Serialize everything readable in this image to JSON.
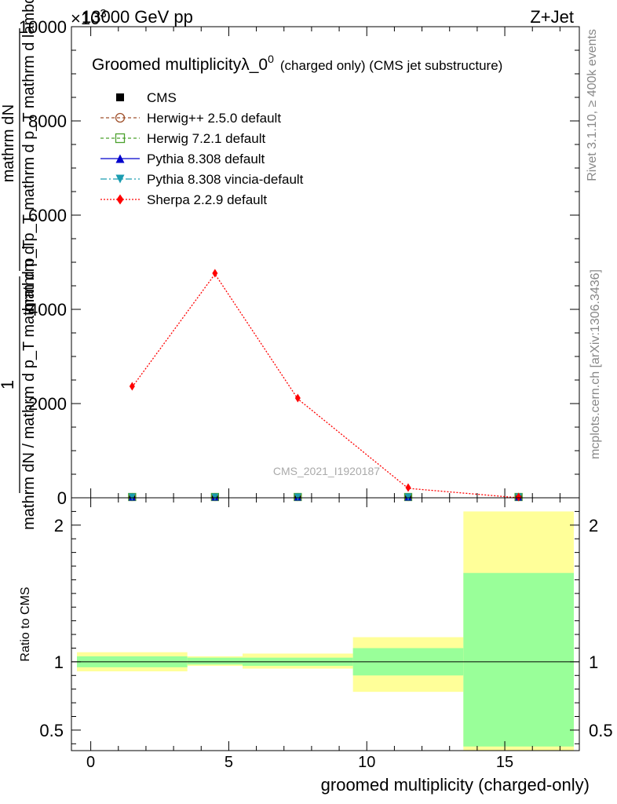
{
  "header": {
    "left": "13000 GeV pp",
    "right": "Z+Jet",
    "exponent": "×10",
    "exponent_power": "3"
  },
  "side_labels": {
    "rivet": "Rivet 3.1.10, ≥ 400k events",
    "mcplots": "mcplots.cern.ch [arXiv:1306.3436]"
  },
  "watermark": "CMS_2021_I1920187",
  "colors": {
    "cms": "#000000",
    "herwigpp": "#a0522d",
    "herwig7": "#4aa02c",
    "pythia": "#0000cc",
    "vincia": "#1a9cb0",
    "sherpa": "#ff0000",
    "band_inner": "#99ff99",
    "band_outer": "#ffff99"
  },
  "chart_data": [
    {
      "type": "line",
      "title": "Groomed multiplicity λ_0^0",
      "title_main": "Groomed multiplicity",
      "title_lambda": "λ_0",
      "title_sup": "0",
      "title_note": "(charged only) (CMS jet substructure)",
      "ylabel_frac_num_line1": "mathrm d",
      "ylabel_frac_num_line2": "N",
      "ylabel_frac_den": "mathrm d p_T mathrm d p_T mathrm d lambda",
      "ylabel_prefix_num": "1",
      "ylabel_prefix_den": "mathrm dN / mathrm d p_T mathrm d p_T",
      "ylabel": "1/(mathrm dN / mathrm d p_T mathrm d p_T) · mathrm d²N/(mathrm d p_T mathrm d p_T mathrm d lambda)",
      "ylim": [
        0,
        10000
      ],
      "yticks": [
        0,
        2000,
        4000,
        6000,
        8000,
        10000
      ],
      "ytick_labels": [
        "0",
        "2000",
        "4000",
        "6000",
        "8000",
        "10000"
      ],
      "xlim": [
        -0.7,
        17.7
      ],
      "bin_edges": [
        -0.5,
        3.5,
        5.5,
        9.5,
        13.5,
        17.5
      ],
      "x": [
        1.5,
        4.5,
        7.5,
        11.5,
        15.5
      ],
      "series": [
        {
          "name": "CMS",
          "marker": "square",
          "values": [
            0,
            0,
            0,
            0,
            0
          ]
        },
        {
          "name": "Herwig++ 2.5.0 default",
          "marker": "circle-open",
          "values": [
            0,
            0,
            0,
            0,
            0
          ]
        },
        {
          "name": "Herwig 7.2.1 default",
          "marker": "square-open",
          "values": [
            0,
            0,
            0,
            0,
            0
          ]
        },
        {
          "name": "Pythia 8.308 default",
          "marker": "triangle-up",
          "values": [
            0,
            0,
            0,
            0,
            0
          ]
        },
        {
          "name": "Pythia 8.308 vincia-default",
          "marker": "triangle-down",
          "values": [
            0,
            0,
            0,
            0,
            0
          ]
        },
        {
          "name": "Sherpa 2.2.9 default",
          "marker": "diamond",
          "values": [
            2350,
            4750,
            2100,
            200,
            0
          ]
        }
      ],
      "legend_position": "top-left"
    },
    {
      "type": "area",
      "ylabel": "Ratio to CMS",
      "xlabel": "groomed multiplicity (charged-only)",
      "ylim": [
        0.35,
        2.2
      ],
      "yticks": [
        0.5,
        1,
        2
      ],
      "ytick_labels": [
        "0.5",
        "1",
        "2"
      ],
      "xticks": [
        0,
        5,
        10,
        15
      ],
      "xtick_labels": [
        "0",
        "5",
        "10",
        "15"
      ],
      "reference": 1,
      "bands": [
        {
          "x0": -0.5,
          "x1": 3.5,
          "inner": [
            0.96,
            1.04
          ],
          "outer": [
            0.93,
            1.07
          ]
        },
        {
          "x0": 3.5,
          "x1": 5.5,
          "inner": [
            0.98,
            1.03
          ],
          "outer": [
            0.97,
            1.04
          ]
        },
        {
          "x0": 5.5,
          "x1": 9.5,
          "inner": [
            0.97,
            1.03
          ],
          "outer": [
            0.95,
            1.06
          ]
        },
        {
          "x0": 9.5,
          "x1": 13.5,
          "inner": [
            0.9,
            1.1
          ],
          "outer": [
            0.78,
            1.18
          ]
        },
        {
          "x0": 13.5,
          "x1": 17.5,
          "inner": [
            0.38,
            1.65
          ],
          "outer": [
            0.35,
            2.1
          ]
        }
      ]
    }
  ]
}
